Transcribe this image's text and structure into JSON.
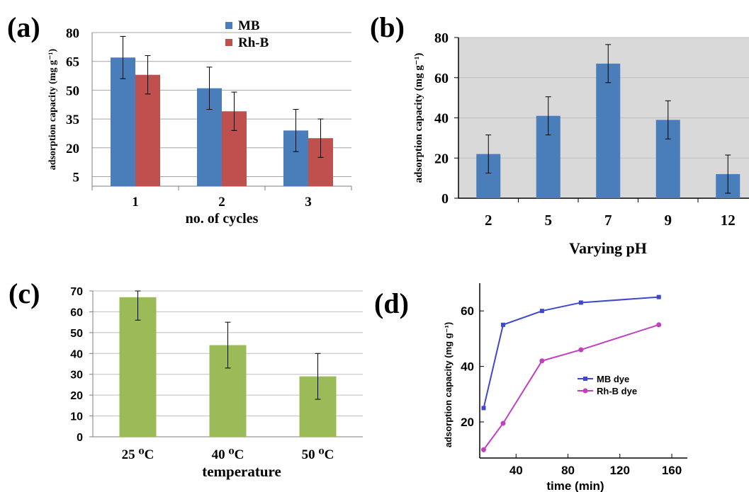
{
  "panels": {
    "a": {
      "tag": "(a)"
    },
    "b": {
      "tag": "(b)"
    },
    "c": {
      "tag": "(c)"
    },
    "d": {
      "tag": "(d)"
    }
  },
  "colors": {
    "mb_bar": "#4a7ebb",
    "rhb_bar": "#c0504d",
    "ph_bar": "#4a7ebb",
    "temp_bar": "#9bbb59",
    "panel_b_bg": "#d9d9d9",
    "mb_line": "#3f48cc",
    "rhb_line": "#c040c0",
    "grid": "#a6a6a6"
  },
  "chart_data": [
    {
      "panel": "a",
      "type": "bar",
      "categories": [
        "1",
        "2",
        "3"
      ],
      "series": [
        {
          "name": "MB",
          "values": [
            67,
            51,
            29
          ],
          "errors": [
            11,
            11,
            11
          ]
        },
        {
          "name": "Rh-B",
          "values": [
            58,
            39,
            25
          ],
          "errors": [
            10,
            10,
            10
          ]
        }
      ],
      "title": "",
      "xlabel": "no. of cycles",
      "ylabel": "adsorption capacity (mg g⁻¹)",
      "ylim": [
        0,
        80
      ],
      "yticks": [
        5,
        20,
        35,
        50,
        65,
        80
      ],
      "grid": true,
      "legend": "top-center"
    },
    {
      "panel": "b",
      "type": "bar",
      "categories": [
        "2",
        "5",
        "7",
        "9",
        "12"
      ],
      "values": [
        22,
        41,
        67,
        39,
        12
      ],
      "errors": [
        9.5,
        9.5,
        9.5,
        9.5,
        9.5
      ],
      "title": "",
      "xlabel": "Varying pH",
      "ylabel": "adsorption capacity (mg g⁻¹)",
      "ylim": [
        0,
        80
      ],
      "yticks": [
        0,
        20,
        40,
        60,
        80
      ],
      "grid": true,
      "legend": "none"
    },
    {
      "panel": "c",
      "type": "bar",
      "categories": [
        "25 ⁰C",
        "40 ⁰C",
        "50 ⁰C"
      ],
      "values": [
        67,
        44,
        29
      ],
      "errors": [
        11,
        11,
        11
      ],
      "title": "",
      "xlabel": "temperature",
      "ylabel": "",
      "ylim": [
        0,
        70
      ],
      "yticks": [
        0,
        10,
        20,
        30,
        40,
        50,
        60,
        70
      ],
      "grid": true,
      "legend": "none"
    },
    {
      "panel": "d",
      "type": "line",
      "series": [
        {
          "name": "MB dye",
          "x": [
            15,
            30,
            60,
            90,
            150
          ],
          "y": [
            25,
            55,
            60,
            63,
            65
          ]
        },
        {
          "name": "Rh-B dye",
          "x": [
            15,
            30,
            60,
            90,
            150
          ],
          "y": [
            10,
            19.5,
            42,
            46,
            55
          ]
        }
      ],
      "title": "",
      "xlabel": "time (min)",
      "ylabel": "adsorption capacity (mg g⁻¹)",
      "xlim": [
        12,
        172
      ],
      "ylim": [
        7,
        70
      ],
      "xticks": [
        40,
        80,
        120,
        160
      ],
      "yticks": [
        20,
        40,
        60
      ],
      "grid": false,
      "legend": "center-right"
    }
  ]
}
